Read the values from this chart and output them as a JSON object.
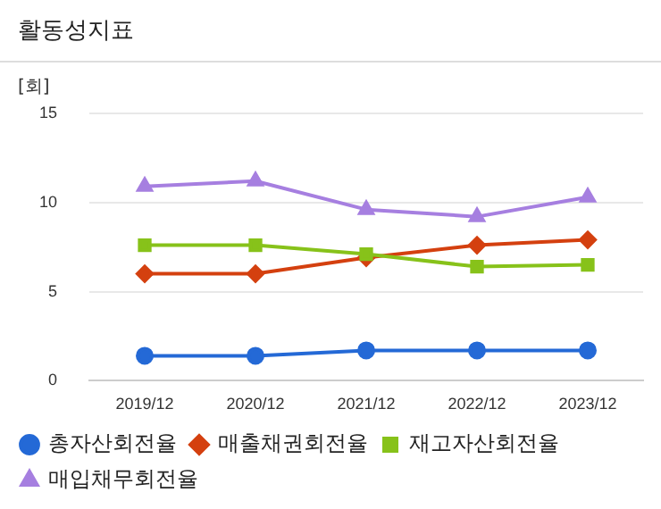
{
  "chart_data": {
    "type": "line",
    "title": "활동성지표",
    "ylabel": "[회]",
    "categories": [
      "2019/12",
      "2020/12",
      "2021/12",
      "2022/12",
      "2023/12"
    ],
    "ylim": [
      0,
      15
    ],
    "yticks": [
      0,
      5,
      10,
      15
    ],
    "grid": "y",
    "legend": "bottom",
    "line_style": "solid",
    "series": [
      {
        "name": "총자산회전율",
        "color": "#2469d6",
        "marker": "circle",
        "values": [
          1.4,
          1.4,
          1.7,
          1.7,
          1.7
        ]
      },
      {
        "name": "매출채권회전율",
        "color": "#d4400f",
        "marker": "diamond",
        "values": [
          6.0,
          6.0,
          6.9,
          7.6,
          7.9
        ]
      },
      {
        "name": "재고자산회전율",
        "color": "#87c21a",
        "marker": "square",
        "values": [
          7.6,
          7.6,
          7.1,
          6.4,
          6.5
        ]
      },
      {
        "name": "매입채무회전율",
        "color": "#a67fe0",
        "marker": "triangle",
        "values": [
          10.9,
          11.2,
          9.6,
          9.2,
          10.3
        ]
      }
    ]
  }
}
